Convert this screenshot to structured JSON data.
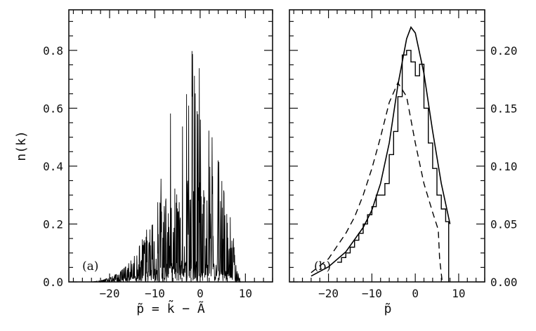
{
  "chart_data": [
    {
      "panel": "(a)",
      "type": "line",
      "title": "",
      "xlabel": "p̃ = k̃ − Ã",
      "ylabel": "n(k)",
      "xlim": [
        -29,
        16
      ],
      "ylim": [
        0,
        0.94
      ],
      "xticks": [
        -20,
        -10,
        0,
        10
      ],
      "yticks": [
        0.0,
        0.2,
        0.4,
        0.6,
        0.8
      ],
      "grid": false,
      "series": [
        {
          "style": "solid-rapidly-oscillating",
          "x": [
            -24,
            -22,
            -20,
            -18,
            -16,
            -14,
            -12,
            -10,
            -8,
            -6,
            -4,
            -2,
            0,
            2,
            4,
            6,
            7,
            8,
            9
          ],
          "envelope_max": [
            0.0,
            0.005,
            0.015,
            0.03,
            0.06,
            0.1,
            0.2,
            0.3,
            0.42,
            0.85,
            0.72,
            0.82,
            0.8,
            0.55,
            0.45,
            0.3,
            0.2,
            0.08,
            0.0
          ],
          "envelope_typical": [
            0.0,
            0.003,
            0.01,
            0.02,
            0.04,
            0.06,
            0.09,
            0.12,
            0.15,
            0.17,
            0.19,
            0.2,
            0.2,
            0.18,
            0.15,
            0.12,
            0.08,
            0.03,
            0.0
          ]
        }
      ]
    },
    {
      "panel": "(b)",
      "type": "line",
      "title": "",
      "xlabel": "p̃",
      "ylabel": "",
      "xlim": [
        -29,
        16
      ],
      "ylim": [
        0,
        0.235
      ],
      "xticks": [
        -20,
        -10,
        0,
        10
      ],
      "yticks": [
        0.0,
        0.05,
        0.1,
        0.15,
        0.2
      ],
      "y_axis_side": "right",
      "grid": false,
      "series": [
        {
          "style": "solid-smooth",
          "x": [
            -24,
            -20,
            -16,
            -12,
            -10,
            -8,
            -6,
            -4,
            -2,
            -1,
            0,
            2,
            4,
            6,
            8
          ],
          "values": [
            0.005,
            0.013,
            0.026,
            0.047,
            0.062,
            0.085,
            0.12,
            0.17,
            0.21,
            0.22,
            0.215,
            0.18,
            0.13,
            0.085,
            0.05
          ]
        },
        {
          "style": "dashed",
          "x": [
            -24,
            -20,
            -16,
            -14,
            -12,
            -10,
            -8,
            -6,
            -4,
            -2,
            0,
            2,
            4,
            5.3,
            5.6,
            6.2
          ],
          "values": [
            0.008,
            0.02,
            0.042,
            0.056,
            0.075,
            0.098,
            0.125,
            0.155,
            0.172,
            0.16,
            0.12,
            0.085,
            0.06,
            0.045,
            0.02,
            0.0
          ]
        },
        {
          "style": "histogram",
          "bin_edges": [
            -18,
            -17,
            -16,
            -15,
            -14,
            -13,
            -12,
            -11,
            -10,
            -9,
            -8,
            -7,
            -6,
            -5,
            -4,
            -3,
            -2,
            -1,
            0,
            1,
            2,
            3,
            4,
            5,
            6,
            7,
            7.7
          ],
          "values": [
            0.017,
            0.021,
            0.025,
            0.03,
            0.036,
            0.042,
            0.05,
            0.058,
            0.065,
            0.075,
            0.075,
            0.085,
            0.11,
            0.13,
            0.16,
            0.196,
            0.2,
            0.19,
            0.178,
            0.188,
            0.15,
            0.12,
            0.098,
            0.075,
            0.063,
            0.052
          ]
        }
      ]
    }
  ]
}
